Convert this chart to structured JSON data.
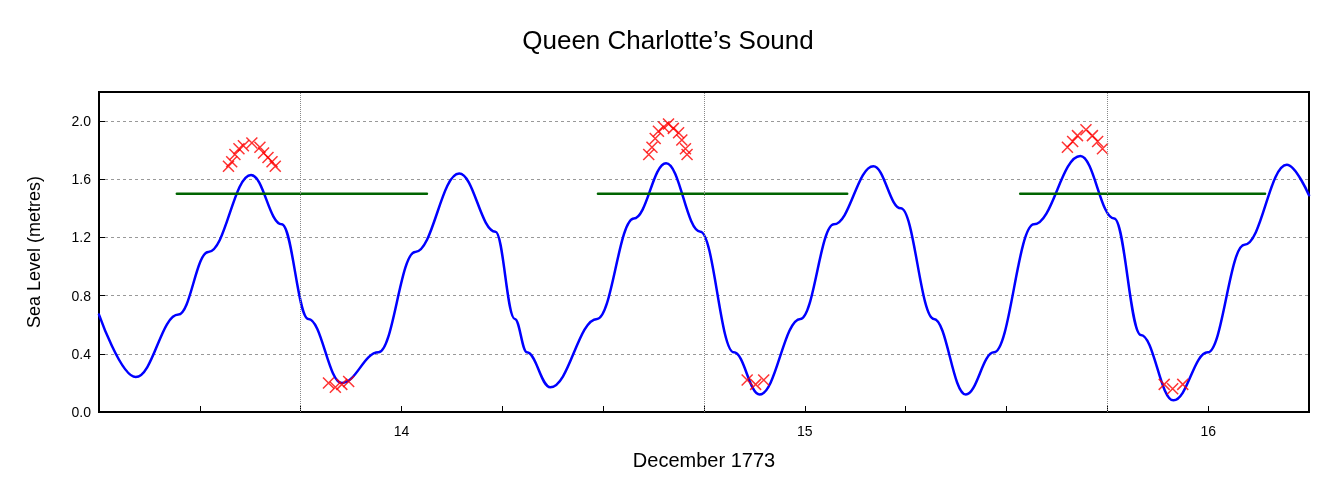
{
  "chart_data": {
    "type": "line",
    "title": "Queen Charlotte’s Sound",
    "xlabel": "December 1773",
    "ylabel": "Sea Level (metres)",
    "xlim": [
      13.25,
      16.25
    ],
    "xticks": [
      {
        "value": 13.25,
        "label": null
      },
      {
        "value": 13.5,
        "label": null
      },
      {
        "value": 13.75,
        "label": null
      },
      14,
      {
        "value": 14.25,
        "label": null
      },
      {
        "value": 14.5,
        "label": null
      },
      {
        "value": 14.75,
        "label": null
      },
      15,
      {
        "value": 15.25,
        "label": null
      },
      {
        "value": 15.5,
        "label": null
      },
      {
        "value": 15.75,
        "label": null
      },
      16,
      {
        "value": 16.25,
        "label": null
      }
    ],
    "ylim": [
      0,
      2.2
    ],
    "yticks": [
      {
        "value": 0,
        "label": "0.0"
      },
      {
        "value": 0.4,
        "label": "0.4"
      },
      {
        "value": 0.8,
        "label": "0.8"
      },
      {
        "value": 1.2,
        "label": "1.2"
      },
      {
        "value": 1.6,
        "label": "1.6"
      },
      {
        "value": 2,
        "label": "2.0"
      }
    ],
    "grid": "y",
    "ref_lines": [
      {
        "axis": "x",
        "value": 13.75,
        "color": "#888888",
        "line_style": "dotted"
      },
      {
        "axis": "x",
        "value": 14.75,
        "color": "#888888",
        "line_style": "dotted"
      },
      {
        "axis": "x",
        "value": 15.75,
        "color": "#888888",
        "line_style": "dotted"
      }
    ],
    "line_style": "solid",
    "marker": "none",
    "series": [
      {
        "color": "#0000ff",
        "x": [
          13.25,
          13.341,
          13.447,
          13.521,
          13.627,
          13.703,
          13.769,
          13.852,
          13.943,
          14.034,
          14.143,
          14.233,
          14.281,
          14.311,
          14.369,
          14.485,
          14.576,
          14.656,
          14.741,
          14.824,
          14.888,
          14.989,
          15.072,
          15.17,
          15.238,
          15.32,
          15.399,
          15.469,
          15.568,
          15.683,
          15.767,
          15.833,
          15.914,
          15.999,
          16.09,
          16.195,
          16.25
        ],
        "values": [
          0.67,
          0.24,
          0.67,
          1.1,
          1.63,
          1.29,
          0.64,
          0.2,
          0.41,
          1.1,
          1.64,
          1.24,
          0.64,
          0.41,
          0.17,
          0.64,
          1.33,
          1.71,
          1.24,
          0.41,
          0.12,
          0.64,
          1.29,
          1.69,
          1.4,
          0.64,
          0.12,
          0.41,
          1.29,
          1.76,
          1.33,
          0.53,
          0.08,
          0.41,
          1.15,
          1.7,
          1.49
        ]
      },
      {
        "color": "#006400",
        "x": [
          13.443,
          14.063
        ],
        "values": [
          1.5,
          1.5
        ]
      },
      {
        "color": "#006400",
        "x": [
          14.487,
          15.105
        ],
        "values": [
          1.5,
          1.5
        ]
      },
      {
        "color": "#006400",
        "x": [
          15.534,
          16.141
        ],
        "values": [
          1.5,
          1.5
        ]
      },
      {
        "type": "scatter",
        "color": "#ff0000",
        "marker": "cross",
        "x": [
          13.571,
          13.579,
          13.587,
          13.597,
          13.608,
          13.629,
          13.649,
          13.658,
          13.669,
          13.679,
          13.687,
          13.819,
          13.836,
          13.852,
          13.869,
          14.613,
          14.621,
          14.629,
          14.637,
          14.65,
          14.662,
          14.674,
          14.687,
          14.695,
          14.704,
          14.708,
          14.857,
          14.878,
          14.898,
          15.651,
          15.664,
          15.676,
          15.697,
          15.713,
          15.726,
          15.738,
          15.891,
          15.912,
          15.937
        ],
        "values": [
          1.69,
          1.72,
          1.77,
          1.81,
          1.83,
          1.85,
          1.82,
          1.78,
          1.75,
          1.72,
          1.69,
          0.2,
          0.17,
          0.19,
          0.21,
          1.77,
          1.82,
          1.88,
          1.93,
          1.96,
          1.98,
          1.95,
          1.92,
          1.87,
          1.81,
          1.77,
          0.22,
          0.19,
          0.22,
          1.82,
          1.86,
          1.9,
          1.94,
          1.9,
          1.86,
          1.81,
          0.19,
          0.16,
          0.19
        ]
      }
    ]
  }
}
